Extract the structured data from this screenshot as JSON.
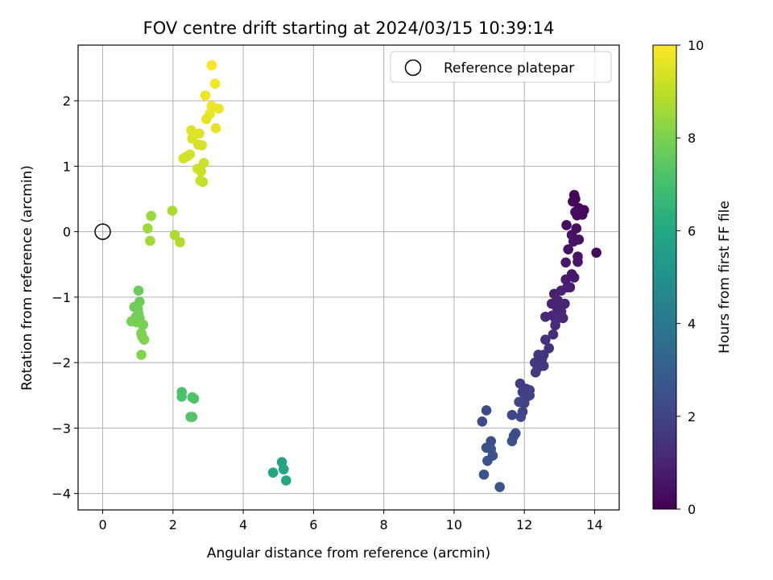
{
  "chart_data": {
    "type": "scatter",
    "title": "FOV centre drift starting at 2024/03/15 10:39:14",
    "xlabel": "Angular distance from reference (arcmin)",
    "ylabel": "Rotation from reference (arcmin)",
    "xlim": [
      -0.7,
      14.7
    ],
    "ylim": [
      -4.25,
      2.85
    ],
    "xticks": [
      0,
      2,
      4,
      6,
      8,
      10,
      12,
      14
    ],
    "yticks": [
      -4,
      -3,
      -2,
      -1,
      0,
      1,
      2
    ],
    "grid": true,
    "legend": {
      "position": "top-right",
      "entries": [
        "Reference platepar"
      ]
    },
    "reference_point": {
      "x": 0,
      "y": 0
    },
    "colorbar": {
      "label": "Hours from first FF file",
      "range": [
        0,
        10
      ],
      "ticks": [
        0,
        2,
        4,
        6,
        8,
        10
      ],
      "colormap": "viridis"
    },
    "points": [
      {
        "x": 13.42,
        "y": 0.56,
        "c": 0.05
      },
      {
        "x": 13.45,
        "y": 0.5,
        "c": 0.1
      },
      {
        "x": 13.38,
        "y": 0.46,
        "c": 0.15
      },
      {
        "x": 13.6,
        "y": 0.3,
        "c": 0.2
      },
      {
        "x": 13.7,
        "y": 0.33,
        "c": 0.25
      },
      {
        "x": 13.55,
        "y": 0.36,
        "c": 0.2
      },
      {
        "x": 13.5,
        "y": 0.25,
        "c": 0.3
      },
      {
        "x": 13.65,
        "y": 0.26,
        "c": 0.3
      },
      {
        "x": 13.45,
        "y": 0.3,
        "c": 0.35
      },
      {
        "x": 13.2,
        "y": 0.1,
        "c": 0.4
      },
      {
        "x": 13.48,
        "y": 0.05,
        "c": 0.4
      },
      {
        "x": 14.05,
        "y": -0.32,
        "c": 0.3
      },
      {
        "x": 13.35,
        "y": -0.05,
        "c": 0.45
      },
      {
        "x": 13.4,
        "y": -0.15,
        "c": 0.5
      },
      {
        "x": 13.55,
        "y": -0.12,
        "c": 0.5
      },
      {
        "x": 13.25,
        "y": -0.27,
        "c": 0.55
      },
      {
        "x": 13.52,
        "y": -0.38,
        "c": 0.55
      },
      {
        "x": 13.52,
        "y": -0.46,
        "c": 0.6
      },
      {
        "x": 13.18,
        "y": -0.47,
        "c": 0.65
      },
      {
        "x": 13.35,
        "y": -0.65,
        "c": 0.7
      },
      {
        "x": 13.42,
        "y": -0.7,
        "c": 0.7
      },
      {
        "x": 13.18,
        "y": -0.73,
        "c": 0.75
      },
      {
        "x": 13.3,
        "y": -0.85,
        "c": 0.8
      },
      {
        "x": 13.22,
        "y": -0.85,
        "c": 0.85
      },
      {
        "x": 13.05,
        "y": -0.9,
        "c": 0.9
      },
      {
        "x": 12.85,
        "y": -0.95,
        "c": 0.9
      },
      {
        "x": 12.95,
        "y": -1.05,
        "c": 0.95
      },
      {
        "x": 13.15,
        "y": -1.1,
        "c": 1.0
      },
      {
        "x": 12.78,
        "y": -1.1,
        "c": 1.0
      },
      {
        "x": 12.92,
        "y": -1.15,
        "c": 1.05
      },
      {
        "x": 13.05,
        "y": -1.22,
        "c": 1.1
      },
      {
        "x": 12.6,
        "y": -1.3,
        "c": 1.1
      },
      {
        "x": 12.8,
        "y": -1.28,
        "c": 1.15
      },
      {
        "x": 13.1,
        "y": -1.32,
        "c": 1.15
      },
      {
        "x": 12.9,
        "y": -1.35,
        "c": 1.2
      },
      {
        "x": 12.88,
        "y": -1.43,
        "c": 1.25
      },
      {
        "x": 12.82,
        "y": -1.57,
        "c": 1.3
      },
      {
        "x": 12.6,
        "y": -1.65,
        "c": 1.35
      },
      {
        "x": 12.7,
        "y": -1.78,
        "c": 1.4
      },
      {
        "x": 12.55,
        "y": -1.88,
        "c": 1.45
      },
      {
        "x": 12.4,
        "y": -1.88,
        "c": 1.5
      },
      {
        "x": 12.5,
        "y": -1.95,
        "c": 1.5
      },
      {
        "x": 12.3,
        "y": -2.0,
        "c": 1.55
      },
      {
        "x": 12.55,
        "y": -2.05,
        "c": 1.6
      },
      {
        "x": 12.38,
        "y": -2.08,
        "c": 1.65
      },
      {
        "x": 12.32,
        "y": -2.15,
        "c": 1.7
      },
      {
        "x": 11.88,
        "y": -2.32,
        "c": 1.75
      },
      {
        "x": 12.05,
        "y": -2.4,
        "c": 1.8
      },
      {
        "x": 12.15,
        "y": -2.42,
        "c": 1.85
      },
      {
        "x": 11.95,
        "y": -2.45,
        "c": 1.85
      },
      {
        "x": 12.15,
        "y": -2.5,
        "c": 1.9
      },
      {
        "x": 12.02,
        "y": -2.55,
        "c": 1.95
      },
      {
        "x": 11.85,
        "y": -2.6,
        "c": 2.0
      },
      {
        "x": 12.0,
        "y": -2.62,
        "c": 2.0
      },
      {
        "x": 11.95,
        "y": -2.75,
        "c": 2.05
      },
      {
        "x": 11.65,
        "y": -2.8,
        "c": 2.1
      },
      {
        "x": 11.9,
        "y": -2.83,
        "c": 2.15
      },
      {
        "x": 10.92,
        "y": -2.73,
        "c": 2.25
      },
      {
        "x": 10.8,
        "y": -2.9,
        "c": 2.3
      },
      {
        "x": 11.75,
        "y": -3.08,
        "c": 2.35
      },
      {
        "x": 11.7,
        "y": -3.12,
        "c": 2.35
      },
      {
        "x": 11.65,
        "y": -3.2,
        "c": 2.4
      },
      {
        "x": 11.05,
        "y": -3.2,
        "c": 2.4
      },
      {
        "x": 10.92,
        "y": -3.3,
        "c": 2.45
      },
      {
        "x": 11.05,
        "y": -3.32,
        "c": 2.5
      },
      {
        "x": 11.1,
        "y": -3.42,
        "c": 2.5
      },
      {
        "x": 10.95,
        "y": -3.5,
        "c": 2.55
      },
      {
        "x": 10.85,
        "y": -3.71,
        "c": 2.6
      },
      {
        "x": 11.3,
        "y": -3.9,
        "c": 2.65
      },
      {
        "x": 5.1,
        "y": -3.52,
        "c": 5.8
      },
      {
        "x": 4.85,
        "y": -3.68,
        "c": 5.9
      },
      {
        "x": 5.15,
        "y": -3.63,
        "c": 5.9
      },
      {
        "x": 5.22,
        "y": -3.8,
        "c": 6.0
      },
      {
        "x": 2.25,
        "y": -2.45,
        "c": 7.1
      },
      {
        "x": 2.25,
        "y": -2.52,
        "c": 7.15
      },
      {
        "x": 2.55,
        "y": -2.53,
        "c": 7.2
      },
      {
        "x": 2.6,
        "y": -2.55,
        "c": 7.2
      },
      {
        "x": 2.5,
        "y": -2.83,
        "c": 7.25
      },
      {
        "x": 2.55,
        "y": -2.83,
        "c": 7.3
      },
      {
        "x": 1.02,
        "y": -0.9,
        "c": 7.7
      },
      {
        "x": 1.05,
        "y": -1.07,
        "c": 7.75
      },
      {
        "x": 0.9,
        "y": -1.15,
        "c": 7.8
      },
      {
        "x": 1.0,
        "y": -1.18,
        "c": 7.8
      },
      {
        "x": 1.02,
        "y": -1.25,
        "c": 7.85
      },
      {
        "x": 0.95,
        "y": -1.3,
        "c": 7.85
      },
      {
        "x": 1.05,
        "y": -1.32,
        "c": 7.9
      },
      {
        "x": 0.82,
        "y": -1.37,
        "c": 7.9
      },
      {
        "x": 0.95,
        "y": -1.38,
        "c": 7.95
      },
      {
        "x": 1.08,
        "y": -1.4,
        "c": 7.95
      },
      {
        "x": 1.15,
        "y": -1.42,
        "c": 8.0
      },
      {
        "x": 1.1,
        "y": -1.55,
        "c": 8.0
      },
      {
        "x": 1.12,
        "y": -1.6,
        "c": 8.05
      },
      {
        "x": 1.18,
        "y": -1.65,
        "c": 8.1
      },
      {
        "x": 1.1,
        "y": -1.88,
        "c": 8.1
      },
      {
        "x": 1.38,
        "y": 0.24,
        "c": 8.5
      },
      {
        "x": 1.28,
        "y": 0.05,
        "c": 8.55
      },
      {
        "x": 1.35,
        "y": -0.14,
        "c": 8.6
      },
      {
        "x": 1.98,
        "y": 0.32,
        "c": 8.7
      },
      {
        "x": 2.05,
        "y": -0.05,
        "c": 8.75
      },
      {
        "x": 2.2,
        "y": -0.16,
        "c": 8.8
      },
      {
        "x": 3.1,
        "y": 2.54,
        "c": 9.9
      },
      {
        "x": 3.2,
        "y": 2.26,
        "c": 9.85
      },
      {
        "x": 2.92,
        "y": 2.08,
        "c": 9.8
      },
      {
        "x": 3.1,
        "y": 1.92,
        "c": 9.75
      },
      {
        "x": 3.3,
        "y": 1.88,
        "c": 9.7
      },
      {
        "x": 3.05,
        "y": 1.8,
        "c": 9.7
      },
      {
        "x": 2.95,
        "y": 1.72,
        "c": 9.65
      },
      {
        "x": 3.22,
        "y": 1.58,
        "c": 9.6
      },
      {
        "x": 2.52,
        "y": 1.55,
        "c": 9.55
      },
      {
        "x": 2.75,
        "y": 1.5,
        "c": 9.5
      },
      {
        "x": 2.6,
        "y": 1.5,
        "c": 9.5
      },
      {
        "x": 2.55,
        "y": 1.42,
        "c": 9.45
      },
      {
        "x": 2.72,
        "y": 1.33,
        "c": 9.4
      },
      {
        "x": 2.82,
        "y": 1.32,
        "c": 9.4
      },
      {
        "x": 2.48,
        "y": 1.18,
        "c": 9.35
      },
      {
        "x": 2.4,
        "y": 1.15,
        "c": 9.3
      },
      {
        "x": 2.3,
        "y": 1.12,
        "c": 9.3
      },
      {
        "x": 2.88,
        "y": 1.05,
        "c": 9.25
      },
      {
        "x": 2.7,
        "y": 0.96,
        "c": 9.2
      },
      {
        "x": 2.8,
        "y": 0.92,
        "c": 9.2
      },
      {
        "x": 2.78,
        "y": 0.78,
        "c": 9.15
      },
      {
        "x": 2.85,
        "y": 0.76,
        "c": 9.1
      }
    ]
  }
}
